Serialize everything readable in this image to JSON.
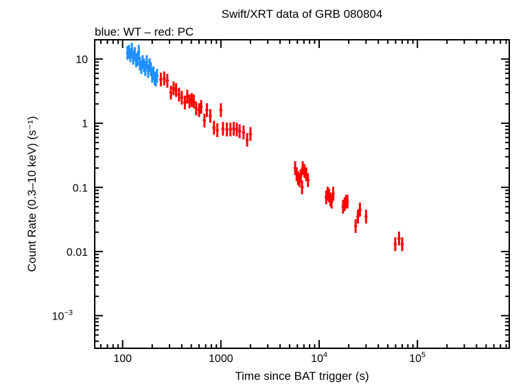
{
  "chart_data": {
    "type": "scatter",
    "title": "Swift/XRT data of GRB 080804",
    "subtitle": "blue: WT – red: PC",
    "xlabel": "Time since BAT trigger (s)",
    "ylabel": "Count Rate (0.3–10 keV) (s⁻¹)",
    "xscale": "log",
    "yscale": "log",
    "xlim": [
      52,
      860000
    ],
    "ylim": [
      0.00031,
      20
    ],
    "grid": false,
    "x_tick_labels": [
      {
        "value": 100,
        "label": "100"
      },
      {
        "value": 1000,
        "label": "1000"
      },
      {
        "value": 10000,
        "label": "10",
        "exp": "4"
      },
      {
        "value": 100000,
        "label": "10",
        "exp": "5"
      }
    ],
    "y_tick_labels": [
      {
        "value": 10,
        "label": "10"
      },
      {
        "value": 1,
        "label": "1"
      },
      {
        "value": 0.1,
        "label": "0.1"
      },
      {
        "value": 0.01,
        "label": "0.01"
      },
      {
        "value": 0.001,
        "label": "10",
        "exp": "−3"
      }
    ],
    "series": [
      {
        "mode": "WT",
        "color": "#1e90ff",
        "points": [
          [
            112,
            12.5
          ],
          [
            116,
            13
          ],
          [
            120,
            11.5
          ],
          [
            124,
            14
          ],
          [
            128,
            10.5
          ],
          [
            133,
            12
          ],
          [
            137,
            9.5
          ],
          [
            142,
            10
          ],
          [
            146,
            13
          ],
          [
            150,
            8.5
          ],
          [
            155,
            7.5
          ],
          [
            160,
            9
          ],
          [
            165,
            8
          ],
          [
            170,
            7
          ],
          [
            176,
            9
          ],
          [
            182,
            6.5
          ],
          [
            188,
            8
          ],
          [
            194,
            7
          ],
          [
            200,
            5.5
          ],
          [
            206,
            6
          ],
          [
            212,
            5
          ],
          [
            218,
            4.8
          ],
          [
            224,
            5.5
          ]
        ]
      },
      {
        "mode": "PC",
        "color": "#ff0000",
        "points": [
          [
            245,
            4.8
          ],
          [
            265,
            5
          ],
          [
            285,
            4.6
          ],
          [
            310,
            3.0
          ],
          [
            330,
            3.5
          ],
          [
            350,
            3.3
          ],
          [
            375,
            2.8
          ],
          [
            400,
            2.5
          ],
          [
            430,
            2.1
          ],
          [
            455,
            2.6
          ],
          [
            480,
            2.2
          ],
          [
            505,
            2.3
          ],
          [
            530,
            2.2
          ],
          [
            560,
            1.7
          ],
          [
            600,
            1.6
          ],
          [
            630,
            1.8
          ],
          [
            680,
            1.1
          ],
          [
            720,
            1.6
          ],
          [
            780,
            1.3
          ],
          [
            850,
            0.85
          ],
          [
            920,
            0.78
          ],
          [
            1000,
            1.6
          ],
          [
            1050,
            0.82
          ],
          [
            1150,
            0.8
          ],
          [
            1250,
            0.8
          ],
          [
            1350,
            0.82
          ],
          [
            1450,
            0.8
          ],
          [
            1550,
            0.75
          ],
          [
            1700,
            0.72
          ],
          [
            1850,
            0.55
          ],
          [
            2000,
            0.68
          ],
          [
            5700,
            0.2
          ],
          [
            5900,
            0.16
          ],
          [
            6100,
            0.14
          ],
          [
            6300,
            0.13
          ],
          [
            6500,
            0.15
          ],
          [
            6700,
            0.1
          ],
          [
            6800,
            0.2
          ],
          [
            7100,
            0.18
          ],
          [
            7400,
            0.16
          ],
          [
            7700,
            0.13
          ],
          [
            11800,
            0.07
          ],
          [
            12200,
            0.08
          ],
          [
            12600,
            0.075
          ],
          [
            13000,
            0.065
          ],
          [
            13400,
            0.06
          ],
          [
            13900,
            0.08
          ],
          [
            17500,
            0.05
          ],
          [
            18200,
            0.055
          ],
          [
            18800,
            0.06
          ],
          [
            19400,
            0.06
          ],
          [
            23500,
            0.025
          ],
          [
            24800,
            0.035
          ],
          [
            26000,
            0.045
          ],
          [
            30000,
            0.035
          ],
          [
            59500,
            0.013
          ],
          [
            65000,
            0.016
          ],
          [
            70000,
            0.013
          ]
        ]
      }
    ]
  }
}
